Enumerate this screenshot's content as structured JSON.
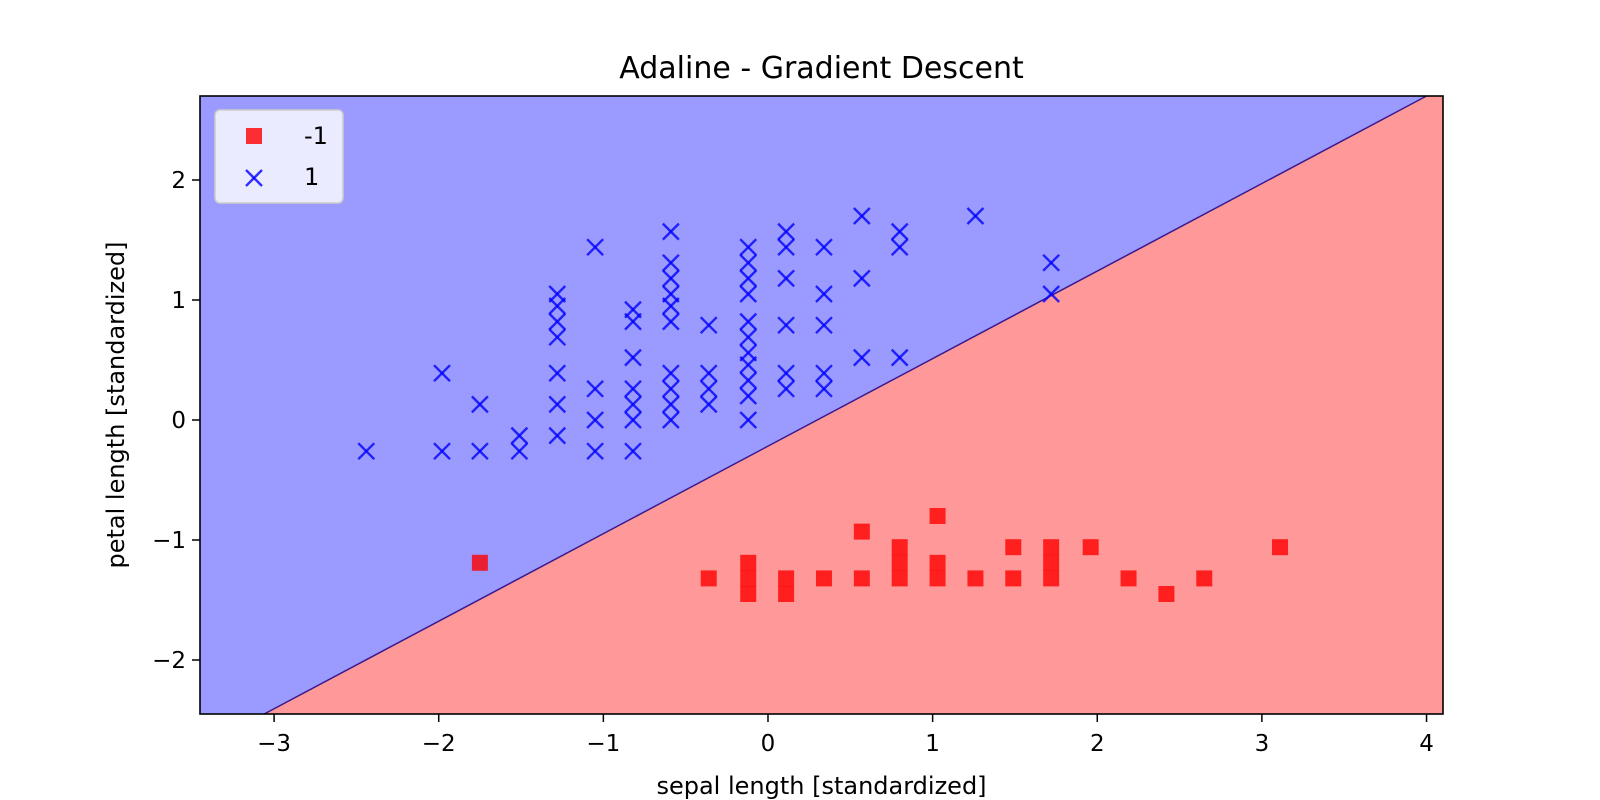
{
  "chart_data": {
    "type": "scatter",
    "title": "Adaline - Gradient Descent",
    "xlabel": "sepal length [standardized]",
    "ylabel": "petal length [standardized]",
    "xlim": [
      -3.45,
      4.1
    ],
    "ylim": [
      -2.45,
      2.7
    ],
    "xticks": [
      -3,
      -2,
      -1,
      0,
      1,
      2,
      3,
      4
    ],
    "yticks": [
      -2,
      -1,
      0,
      1,
      2
    ],
    "grid": false,
    "legend": "top-left",
    "decision_regions": [
      {
        "class": "1",
        "color": "#9b9bff"
      },
      {
        "class": "-1",
        "color": "#ff9999"
      }
    ],
    "decision_boundary": [
      [
        -3.06,
        -2.45
      ],
      [
        4.0,
        2.7
      ]
    ],
    "series": [
      {
        "name": "-1",
        "marker": "square",
        "color": "#ff0000",
        "points": [
          [
            -1.75,
            -1.19
          ],
          [
            -0.36,
            -1.32
          ],
          [
            -0.12,
            -1.19
          ],
          [
            -0.12,
            -1.32
          ],
          [
            -0.12,
            -1.45
          ],
          [
            0.11,
            -1.32
          ],
          [
            0.11,
            -1.45
          ],
          [
            0.34,
            -1.32
          ],
          [
            0.57,
            -0.93
          ],
          [
            0.57,
            -1.32
          ],
          [
            0.8,
            -1.06
          ],
          [
            0.8,
            -1.19
          ],
          [
            0.8,
            -1.32
          ],
          [
            1.03,
            -0.8
          ],
          [
            1.03,
            -1.19
          ],
          [
            1.03,
            -1.32
          ],
          [
            1.26,
            -1.32
          ],
          [
            1.49,
            -1.06
          ],
          [
            1.49,
            -1.32
          ],
          [
            1.72,
            -1.06
          ],
          [
            1.72,
            -1.19
          ],
          [
            1.72,
            -1.32
          ],
          [
            1.96,
            -1.06
          ],
          [
            2.19,
            -1.32
          ],
          [
            2.42,
            -1.45
          ],
          [
            2.65,
            -1.32
          ],
          [
            3.11,
            -1.06
          ]
        ]
      },
      {
        "name": "1",
        "marker": "x",
        "color": "#0000ff",
        "points": [
          [
            -2.44,
            -0.26
          ],
          [
            -1.98,
            0.39
          ],
          [
            -1.98,
            -0.26
          ],
          [
            -1.75,
            0.13
          ],
          [
            -1.75,
            -0.26
          ],
          [
            -1.51,
            -0.13
          ],
          [
            -1.51,
            -0.26
          ],
          [
            -1.28,
            1.05
          ],
          [
            -1.28,
            0.95
          ],
          [
            -1.28,
            0.82
          ],
          [
            -1.28,
            0.69
          ],
          [
            -1.28,
            0.39
          ],
          [
            -1.28,
            0.13
          ],
          [
            -1.28,
            -0.13
          ],
          [
            -1.05,
            1.44
          ],
          [
            -1.05,
            0.26
          ],
          [
            -1.05,
            0.0
          ],
          [
            -1.05,
            -0.26
          ],
          [
            -0.82,
            0.92
          ],
          [
            -0.82,
            0.82
          ],
          [
            -0.82,
            0.52
          ],
          [
            -0.82,
            0.26
          ],
          [
            -0.82,
            0.13
          ],
          [
            -0.82,
            0.0
          ],
          [
            -0.82,
            -0.26
          ],
          [
            -0.59,
            1.57
          ],
          [
            -0.59,
            1.31
          ],
          [
            -0.59,
            1.18
          ],
          [
            -0.59,
            1.05
          ],
          [
            -0.59,
            0.95
          ],
          [
            -0.59,
            0.82
          ],
          [
            -0.59,
            0.39
          ],
          [
            -0.59,
            0.26
          ],
          [
            -0.59,
            0.13
          ],
          [
            -0.59,
            0.0
          ],
          [
            -0.36,
            0.79
          ],
          [
            -0.36,
            0.39
          ],
          [
            -0.36,
            0.26
          ],
          [
            -0.36,
            0.13
          ],
          [
            -0.12,
            1.44
          ],
          [
            -0.12,
            1.31
          ],
          [
            -0.12,
            1.18
          ],
          [
            -0.12,
            1.05
          ],
          [
            -0.12,
            0.82
          ],
          [
            -0.12,
            0.69
          ],
          [
            -0.12,
            0.56
          ],
          [
            -0.12,
            0.46
          ],
          [
            -0.12,
            0.33
          ],
          [
            -0.12,
            0.2
          ],
          [
            -0.12,
            0.0
          ],
          [
            0.11,
            1.57
          ],
          [
            0.11,
            1.44
          ],
          [
            0.11,
            1.18
          ],
          [
            0.11,
            0.79
          ],
          [
            0.11,
            0.39
          ],
          [
            0.11,
            0.26
          ],
          [
            0.34,
            1.44
          ],
          [
            0.34,
            1.05
          ],
          [
            0.34,
            0.79
          ],
          [
            0.34,
            0.39
          ],
          [
            0.34,
            0.26
          ],
          [
            0.57,
            1.7
          ],
          [
            0.57,
            1.18
          ],
          [
            0.57,
            0.52
          ],
          [
            0.8,
            1.57
          ],
          [
            0.8,
            1.44
          ],
          [
            0.8,
            0.52
          ],
          [
            1.26,
            1.7
          ],
          [
            1.72,
            1.31
          ],
          [
            1.72,
            1.05
          ]
        ]
      }
    ]
  }
}
